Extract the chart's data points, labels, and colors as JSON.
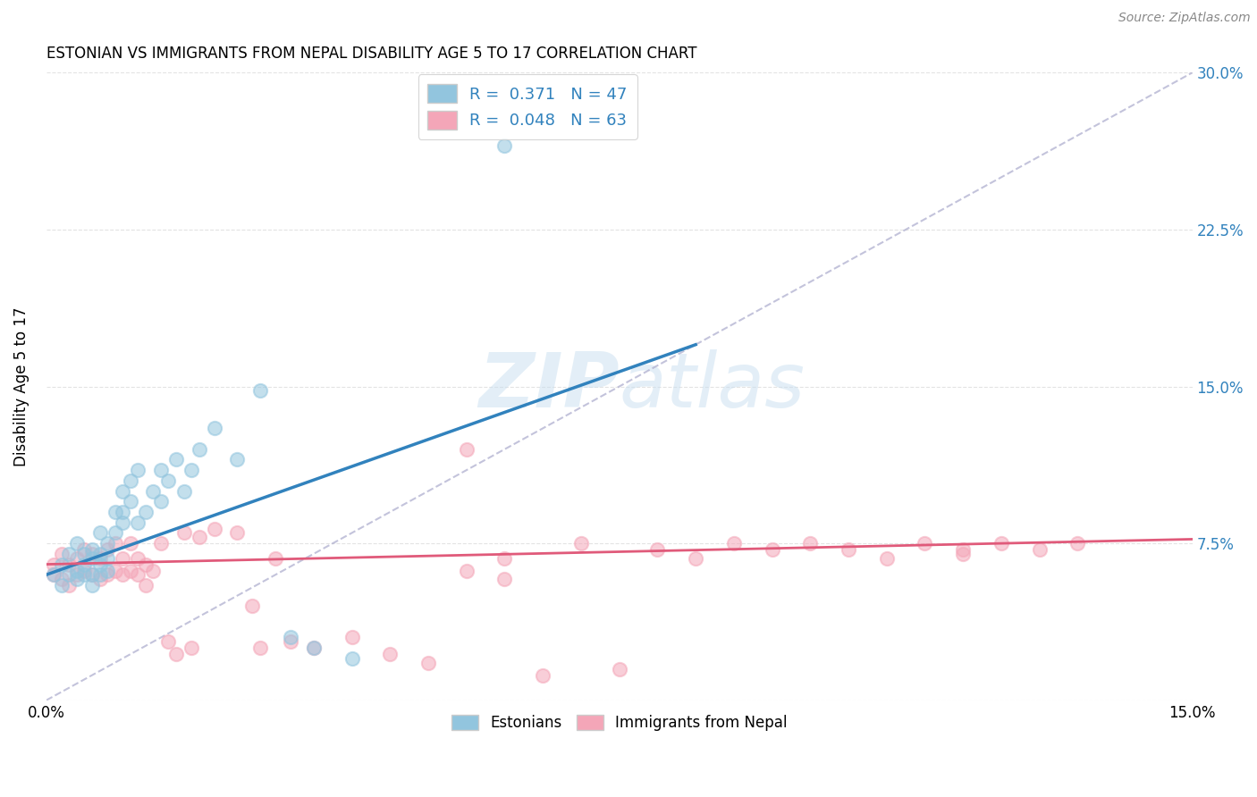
{
  "title": "ESTONIAN VS IMMIGRANTS FROM NEPAL DISABILITY AGE 5 TO 17 CORRELATION CHART",
  "source": "Source: ZipAtlas.com",
  "ylabel": "Disability Age 5 to 17",
  "xlim": [
    0.0,
    0.15
  ],
  "ylim": [
    0.0,
    0.3
  ],
  "blue_color": "#92c5de",
  "pink_color": "#f4a6b8",
  "blue_line_color": "#3182bd",
  "pink_line_color": "#e05a7a",
  "dashed_line_color": "#aaaacc",
  "watermark_color": "#c8dff0",
  "background_color": "#ffffff",
  "grid_color": "#dddddd",
  "blue_scatter_x": [
    0.001,
    0.002,
    0.002,
    0.003,
    0.003,
    0.004,
    0.004,
    0.004,
    0.005,
    0.005,
    0.005,
    0.006,
    0.006,
    0.006,
    0.006,
    0.007,
    0.007,
    0.007,
    0.007,
    0.008,
    0.008,
    0.008,
    0.009,
    0.009,
    0.01,
    0.01,
    0.01,
    0.011,
    0.011,
    0.012,
    0.012,
    0.013,
    0.014,
    0.015,
    0.015,
    0.016,
    0.017,
    0.018,
    0.019,
    0.02,
    0.022,
    0.025,
    0.028,
    0.032,
    0.035,
    0.04,
    0.06
  ],
  "blue_scatter_y": [
    0.06,
    0.055,
    0.065,
    0.06,
    0.07,
    0.058,
    0.062,
    0.075,
    0.06,
    0.065,
    0.07,
    0.055,
    0.06,
    0.068,
    0.072,
    0.06,
    0.065,
    0.07,
    0.08,
    0.062,
    0.068,
    0.075,
    0.08,
    0.09,
    0.085,
    0.09,
    0.1,
    0.095,
    0.105,
    0.085,
    0.11,
    0.09,
    0.1,
    0.095,
    0.11,
    0.105,
    0.115,
    0.1,
    0.11,
    0.12,
    0.13,
    0.115,
    0.148,
    0.03,
    0.025,
    0.02,
    0.265
  ],
  "pink_scatter_x": [
    0.001,
    0.001,
    0.002,
    0.002,
    0.003,
    0.003,
    0.004,
    0.004,
    0.005,
    0.005,
    0.006,
    0.006,
    0.007,
    0.007,
    0.008,
    0.008,
    0.009,
    0.009,
    0.01,
    0.01,
    0.011,
    0.011,
    0.012,
    0.012,
    0.013,
    0.013,
    0.014,
    0.015,
    0.016,
    0.017,
    0.018,
    0.019,
    0.02,
    0.022,
    0.025,
    0.027,
    0.028,
    0.03,
    0.032,
    0.035,
    0.04,
    0.045,
    0.05,
    0.055,
    0.06,
    0.065,
    0.07,
    0.075,
    0.08,
    0.085,
    0.09,
    0.095,
    0.1,
    0.105,
    0.11,
    0.115,
    0.12,
    0.125,
    0.13,
    0.135,
    0.055,
    0.06,
    0.12
  ],
  "pink_scatter_y": [
    0.06,
    0.065,
    0.058,
    0.07,
    0.055,
    0.065,
    0.06,
    0.068,
    0.062,
    0.072,
    0.06,
    0.07,
    0.058,
    0.068,
    0.06,
    0.072,
    0.062,
    0.075,
    0.06,
    0.068,
    0.062,
    0.075,
    0.06,
    0.068,
    0.055,
    0.065,
    0.062,
    0.075,
    0.028,
    0.022,
    0.08,
    0.025,
    0.078,
    0.082,
    0.08,
    0.045,
    0.025,
    0.068,
    0.028,
    0.025,
    0.03,
    0.022,
    0.018,
    0.062,
    0.058,
    0.012,
    0.075,
    0.015,
    0.072,
    0.068,
    0.075,
    0.072,
    0.075,
    0.072,
    0.068,
    0.075,
    0.072,
    0.075,
    0.072,
    0.075,
    0.12,
    0.068,
    0.07
  ],
  "blue_line_x0": 0.0,
  "blue_line_y0": 0.06,
  "blue_line_x1": 0.085,
  "blue_line_y1": 0.17,
  "pink_line_x0": 0.0,
  "pink_line_y0": 0.065,
  "pink_line_x1": 0.15,
  "pink_line_y1": 0.077
}
